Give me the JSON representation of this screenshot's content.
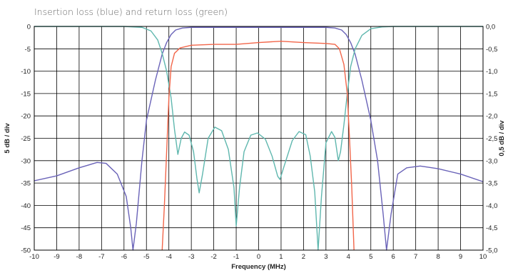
{
  "chart_data": {
    "type": "line",
    "caption": "Insertion loss (blue) and return loss (green)",
    "xlabel": "Frequency (MHz)",
    "ylabel_left": "5 dB / div",
    "ylabel_right": "0,5 dB / div",
    "xlim": [
      -10,
      10
    ],
    "ylim_left": [
      -50,
      0
    ],
    "ylim_right": [
      -5.0,
      0.0
    ],
    "grid": true,
    "x_ticks": [
      "-10",
      "-9",
      "-8",
      "-7",
      "-6",
      "-5",
      "-4",
      "-3",
      "-2",
      "-1",
      "0",
      "1",
      "2",
      "3",
      "4",
      "5",
      "6",
      "7",
      "8",
      "9",
      "10"
    ],
    "y_ticks_left": [
      "0",
      "-5",
      "-10",
      "-15",
      "-20",
      "-25",
      "-30",
      "-35",
      "-40",
      "-45",
      "-50"
    ],
    "y_ticks_right": [
      "0,0",
      "-0,5",
      "-1,0",
      "-1,5",
      "-2,0",
      "-2,5",
      "-3,0",
      "-3,5",
      "-4,0",
      "-4,5",
      "-5,0"
    ],
    "colors": {
      "blue": "#6a63b8",
      "green": "#5fb7ae",
      "red": "#f2664a",
      "grid": "#000000"
    },
    "series": [
      {
        "key": "blue",
        "axis": "left",
        "points": [
          [
            -10,
            -34.5
          ],
          [
            -9,
            -33.4
          ],
          [
            -8,
            -31.6
          ],
          [
            -7.2,
            -30.4
          ],
          [
            -6.8,
            -30.6
          ],
          [
            -6.3,
            -33
          ],
          [
            -5.9,
            -38
          ],
          [
            -5.7,
            -45
          ],
          [
            -5.6,
            -50
          ],
          [
            -5.45,
            -44
          ],
          [
            -5.2,
            -30
          ],
          [
            -5,
            -21
          ],
          [
            -4.6,
            -12
          ],
          [
            -4.3,
            -6.2
          ],
          [
            -4.1,
            -3.6
          ],
          [
            -3.9,
            -1.8
          ],
          [
            -3.7,
            -0.8
          ],
          [
            -3.4,
            -0.35
          ],
          [
            -3,
            -0.2
          ],
          [
            0,
            -0.2
          ],
          [
            3,
            -0.2
          ],
          [
            3.4,
            -0.35
          ],
          [
            3.7,
            -0.8
          ],
          [
            3.9,
            -1.8
          ],
          [
            4.1,
            -3.6
          ],
          [
            4.3,
            -6.2
          ],
          [
            4.6,
            -12
          ],
          [
            5,
            -21
          ],
          [
            5.3,
            -30
          ],
          [
            5.55,
            -42
          ],
          [
            5.7,
            -50
          ],
          [
            5.9,
            -42
          ],
          [
            6.2,
            -33
          ],
          [
            6.6,
            -31.6
          ],
          [
            7.2,
            -31.2
          ],
          [
            8,
            -31.8
          ],
          [
            9,
            -33
          ],
          [
            10,
            -34.7
          ]
        ]
      },
      {
        "key": "green",
        "axis": "left",
        "points": [
          [
            -10,
            0
          ],
          [
            -6,
            0
          ],
          [
            -5.2,
            -0.2
          ],
          [
            -4.8,
            -1
          ],
          [
            -4.5,
            -3
          ],
          [
            -4.3,
            -6
          ],
          [
            -4.1,
            -10
          ],
          [
            -3.9,
            -16
          ],
          [
            -3.75,
            -23
          ],
          [
            -3.6,
            -28.6
          ],
          [
            -3.45,
            -25
          ],
          [
            -3.3,
            -23.6
          ],
          [
            -3.1,
            -24.3
          ],
          [
            -2.9,
            -28
          ],
          [
            -2.75,
            -34
          ],
          [
            -2.65,
            -37.2
          ],
          [
            -2.5,
            -33
          ],
          [
            -2.25,
            -25
          ],
          [
            -1.95,
            -22.5
          ],
          [
            -1.65,
            -23.3
          ],
          [
            -1.35,
            -27.5
          ],
          [
            -1.1,
            -36
          ],
          [
            -1,
            -44.6
          ],
          [
            -0.85,
            -36
          ],
          [
            -0.65,
            -28
          ],
          [
            -0.35,
            -24.3
          ],
          [
            -0.05,
            -23.8
          ],
          [
            0.3,
            -25.2
          ],
          [
            0.6,
            -29
          ],
          [
            0.85,
            -33.5
          ],
          [
            0.95,
            -34.2
          ],
          [
            1.15,
            -31
          ],
          [
            1.5,
            -25.5
          ],
          [
            1.8,
            -23.5
          ],
          [
            2.1,
            -24.2
          ],
          [
            2.3,
            -29
          ],
          [
            2.5,
            -37
          ],
          [
            2.65,
            -50
          ],
          [
            2.8,
            -38
          ],
          [
            3.0,
            -26
          ],
          [
            3.25,
            -23.5
          ],
          [
            3.4,
            -24.8
          ],
          [
            3.55,
            -30
          ],
          [
            3.65,
            -28
          ],
          [
            3.8,
            -22
          ],
          [
            3.95,
            -15
          ],
          [
            4.1,
            -9
          ],
          [
            4.3,
            -5
          ],
          [
            4.6,
            -2
          ],
          [
            5,
            -0.5
          ],
          [
            5.5,
            -0.1
          ],
          [
            6,
            0
          ],
          [
            10,
            0
          ]
        ]
      },
      {
        "key": "red",
        "axis": "right",
        "points": [
          [
            -4.3,
            -5.0
          ],
          [
            -4.2,
            -4.0
          ],
          [
            -4.1,
            -2.8
          ],
          [
            -4.0,
            -1.6
          ],
          [
            -3.9,
            -0.9
          ],
          [
            -3.75,
            -0.6
          ],
          [
            -3.5,
            -0.48
          ],
          [
            -3,
            -0.42
          ],
          [
            -2,
            -0.4
          ],
          [
            -1,
            -0.4
          ],
          [
            0,
            -0.36
          ],
          [
            1,
            -0.33
          ],
          [
            2,
            -0.36
          ],
          [
            3,
            -0.38
          ],
          [
            3.4,
            -0.4
          ],
          [
            3.6,
            -0.5
          ],
          [
            3.8,
            -0.85
          ],
          [
            3.95,
            -1.5
          ],
          [
            4.05,
            -2.5
          ],
          [
            4.15,
            -3.6
          ],
          [
            4.25,
            -5.0
          ]
        ]
      }
    ]
  }
}
